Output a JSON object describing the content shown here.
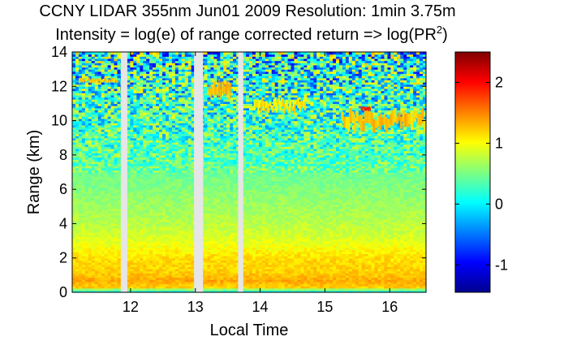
{
  "chart_data": {
    "type": "heatmap",
    "title": {
      "line1": "CCNY LIDAR 355nm Jun01 2009 Resolution: 1min 3.75m",
      "line2_prefix": "Intensity = log(e) of range corrected return => log(PR",
      "line2_superscript": "2",
      "line2_suffix": ")"
    },
    "xlabel": "Local Time",
    "ylabel": "Range (km)",
    "x_ticks": [
      12,
      13,
      14,
      15,
      16
    ],
    "x_tick_labels": [
      "12",
      "13",
      "14",
      "15",
      "16"
    ],
    "xlim": [
      11.1,
      16.56
    ],
    "y_ticks": [
      0,
      2,
      4,
      6,
      8,
      10,
      12,
      14
    ],
    "y_tick_labels": [
      "0",
      "2",
      "4",
      "6",
      "8",
      "10",
      "12",
      "14"
    ],
    "ylim": [
      0,
      14
    ],
    "colorbar": {
      "range": [
        -1.45,
        2.5
      ],
      "ticks": [
        -1,
        0,
        1,
        2
      ],
      "tick_labels": [
        "-1",
        "0",
        "1",
        "2"
      ],
      "colormap": "jet"
    },
    "data_gaps_local_time": [
      [
        11.85,
        11.95
      ],
      [
        12.98,
        13.12
      ],
      [
        13.66,
        13.74
      ]
    ],
    "profile": [
      {
        "range_km": 0.1,
        "value": 0.2
      },
      {
        "range_km": 0.3,
        "value": 1.2
      },
      {
        "range_km": 0.7,
        "value": 1.35
      },
      {
        "range_km": 1.2,
        "value": 1.2
      },
      {
        "range_km": 2.0,
        "value": 1.15
      },
      {
        "range_km": 3.0,
        "value": 0.9
      },
      {
        "range_km": 4.0,
        "value": 0.75
      },
      {
        "range_km": 6.0,
        "value": 0.55
      },
      {
        "range_km": 8.0,
        "value": 0.35
      },
      {
        "range_km": 10.0,
        "value": 0.25
      },
      {
        "range_km": 12.0,
        "value": 0.2
      },
      {
        "range_km": 14.0,
        "value": 0.1
      }
    ],
    "cloud_layers": [
      {
        "time_start": 11.2,
        "time_end": 11.8,
        "range_km": 12.35,
        "thickness_km": 0.3,
        "value": 1.2
      },
      {
        "time_start": 13.2,
        "time_end": 13.55,
        "range_km": 11.8,
        "thickness_km": 0.9,
        "value": 1.3
      },
      {
        "time_start": 13.9,
        "time_end": 14.7,
        "range_km": 10.9,
        "thickness_km": 0.8,
        "value": 1.1
      },
      {
        "time_start": 15.25,
        "time_end": 16.55,
        "range_km": 10.0,
        "thickness_km": 1.2,
        "value": 1.25
      },
      {
        "time_start": 15.55,
        "time_end": 15.7,
        "range_km": 10.7,
        "thickness_km": 0.25,
        "value": 1.9
      }
    ]
  }
}
